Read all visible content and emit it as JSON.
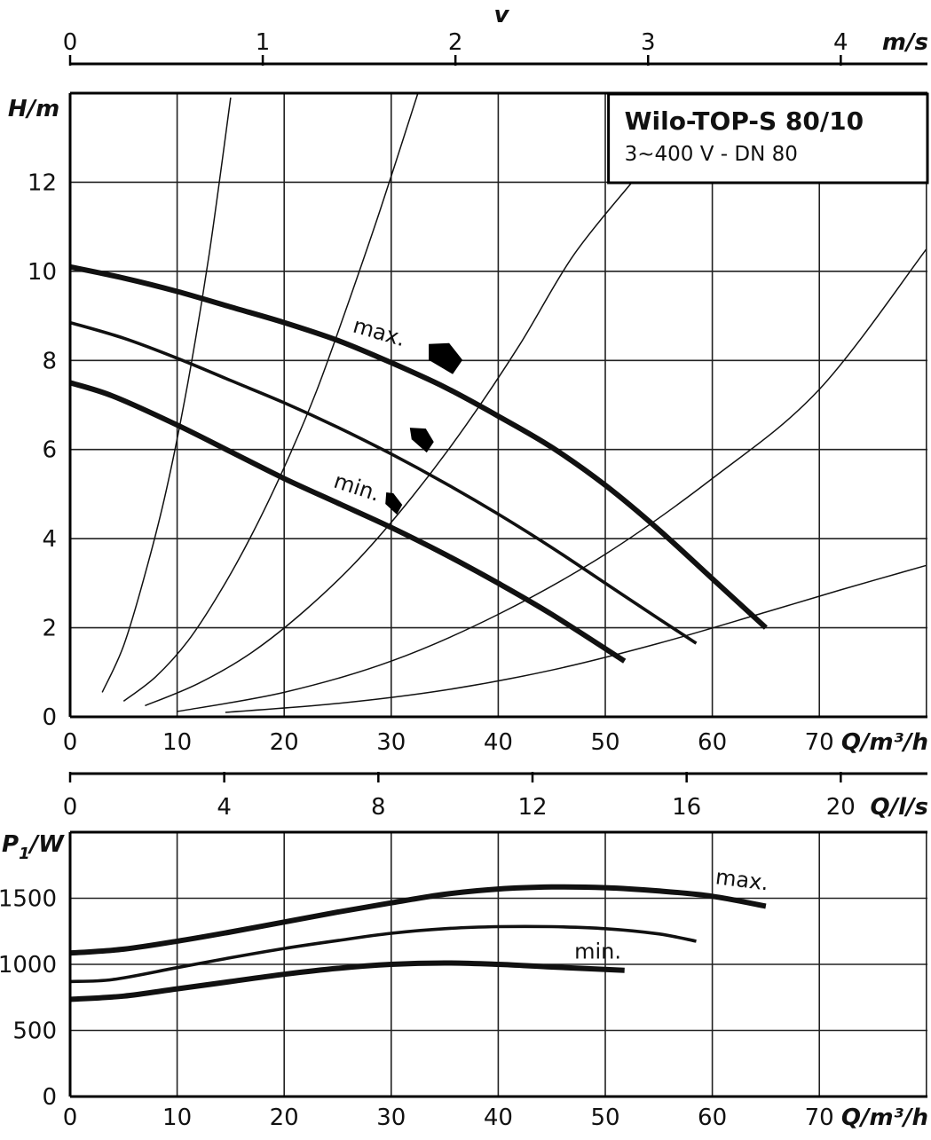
{
  "chart_data": [
    {
      "type": "line",
      "title": "Wilo-TOP-S 80/10",
      "subtitle": "3~400 V - DN 80",
      "xlabel": "Q/m³/h",
      "ylabel": "H/m",
      "xlim": [
        0,
        80
      ],
      "ylim": [
        0,
        14
      ],
      "x_ticks": [
        "0",
        "10",
        "20",
        "30",
        "40",
        "50",
        "60",
        "70"
      ],
      "y_ticks": [
        "0",
        "2",
        "4",
        "6",
        "8",
        "10",
        "12"
      ],
      "grid": true,
      "velocity_axis": {
        "label": "v",
        "unit": "m/s",
        "ticks": [
          "0",
          "1",
          "2",
          "3",
          "4"
        ],
        "m3h_per_unit": 18.0
      },
      "flow_ls_axis": {
        "label": "Q/l/s",
        "ticks": [
          "0",
          "4",
          "8",
          "12",
          "16",
          "20"
        ],
        "m3h_per_unit": 3.6
      },
      "series": [
        {
          "name": "max.",
          "weight": "bold",
          "x": [
            0,
            5,
            10,
            15,
            20,
            25,
            30,
            35,
            40,
            45,
            50,
            55,
            60,
            65
          ],
          "y": [
            10.1,
            9.85,
            9.55,
            9.2,
            8.85,
            8.45,
            7.95,
            7.4,
            6.75,
            6.05,
            5.2,
            4.2,
            3.1,
            2.0
          ]
        },
        {
          "name": "",
          "weight": "medium",
          "x": [
            0,
            5,
            10,
            15,
            20,
            25,
            30,
            35,
            40,
            45,
            50,
            55,
            58.5
          ],
          "y": [
            8.85,
            8.5,
            8.05,
            7.55,
            7.05,
            6.5,
            5.9,
            5.25,
            4.55,
            3.8,
            3.0,
            2.2,
            1.65
          ]
        },
        {
          "name": "min.",
          "weight": "bold",
          "x": [
            0,
            4,
            10,
            15,
            20,
            25,
            30,
            35,
            40,
            45,
            51.8
          ],
          "y": [
            7.5,
            7.2,
            6.55,
            5.95,
            5.35,
            4.8,
            4.25,
            3.65,
            3.0,
            2.3,
            1.25
          ]
        }
      ],
      "system_curves": [
        {
          "x": [
            3,
            5,
            7,
            9,
            11,
            13,
            15
          ],
          "y": [
            0.55,
            1.6,
            3.2,
            5.1,
            7.5,
            10.4,
            13.9
          ]
        },
        {
          "x": [
            5,
            8,
            11,
            14,
            17,
            20,
            23,
            26,
            29,
            32.5
          ],
          "y": [
            0.35,
            0.9,
            1.7,
            2.8,
            4.1,
            5.6,
            7.3,
            9.3,
            11.4,
            14
          ]
        },
        {
          "x": [
            7,
            12,
            17,
            22,
            27,
            32,
            37,
            42,
            47,
            52.5
          ],
          "y": [
            0.25,
            0.75,
            1.45,
            2.4,
            3.55,
            4.95,
            6.55,
            8.35,
            10.35,
            12
          ]
        },
        {
          "x": [
            10,
            20,
            30,
            40,
            50,
            60,
            70,
            80
          ],
          "y": [
            0.12,
            0.55,
            1.25,
            2.3,
            3.65,
            5.35,
            7.35,
            10.5
          ]
        },
        {
          "x": [
            14.5,
            25,
            35,
            45,
            55,
            65,
            72,
            80
          ],
          "y": [
            0.1,
            0.3,
            0.6,
            1.05,
            1.65,
            2.35,
            2.85,
            3.4
          ]
        }
      ],
      "speed_markers": [
        {
          "shape": "large",
          "x": 35,
          "y": 8.05
        },
        {
          "shape": "medium",
          "x": 32.9,
          "y": 6.25
        },
        {
          "shape": "small",
          "x": 30.2,
          "y": 4.8
        }
      ]
    },
    {
      "type": "line",
      "xlabel": "Q/m³/h",
      "ylabel": "P1/W",
      "ylabel_main": "P",
      "ylabel_sub": "1",
      "ylabel_unit": "/W",
      "xlim": [
        0,
        80
      ],
      "ylim": [
        0,
        2000
      ],
      "x_ticks": [
        "0",
        "10",
        "20",
        "30",
        "40",
        "50",
        "60",
        "70"
      ],
      "y_ticks": [
        "0",
        "500",
        "1000",
        "1500"
      ],
      "grid": true,
      "series": [
        {
          "name": "max.",
          "weight": "bold",
          "x": [
            0,
            5,
            10,
            15,
            20,
            25,
            30,
            35,
            40,
            45,
            50,
            55,
            60,
            65
          ],
          "y": [
            1085,
            1115,
            1175,
            1245,
            1320,
            1395,
            1465,
            1530,
            1570,
            1585,
            1580,
            1555,
            1515,
            1440
          ]
        },
        {
          "name": "",
          "weight": "medium",
          "x": [
            0,
            4,
            10,
            15,
            20,
            25,
            30,
            35,
            40,
            45,
            50,
            55,
            58.5
          ],
          "y": [
            870,
            885,
            975,
            1050,
            1120,
            1180,
            1235,
            1270,
            1285,
            1285,
            1270,
            1230,
            1175
          ]
        },
        {
          "name": "min.",
          "weight": "bold",
          "x": [
            0,
            5,
            10,
            15,
            20,
            25,
            30,
            35,
            40,
            45,
            51.8
          ],
          "y": [
            735,
            760,
            815,
            870,
            925,
            970,
            1000,
            1010,
            1000,
            980,
            955
          ]
        }
      ]
    }
  ]
}
